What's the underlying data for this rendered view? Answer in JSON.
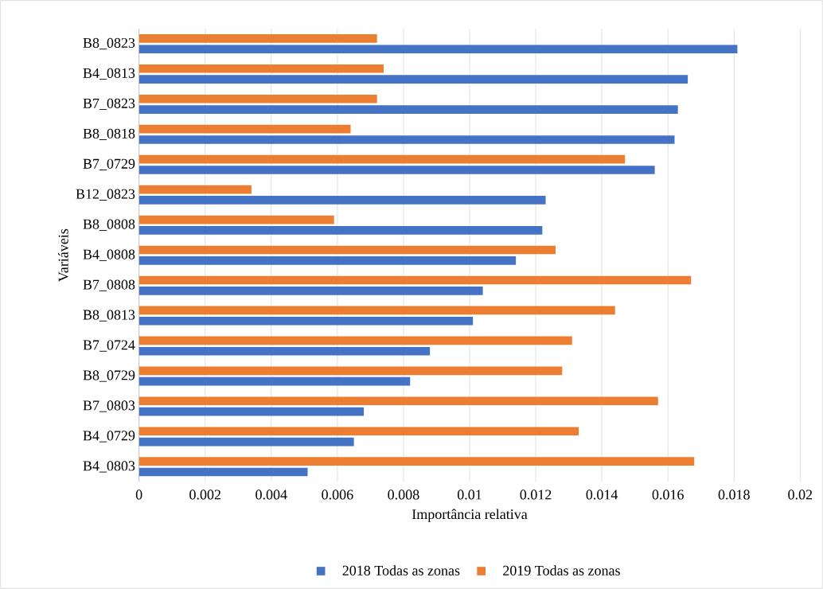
{
  "chart_data": {
    "type": "bar",
    "orientation": "horizontal",
    "categories": [
      "B8_0823",
      "B4_0813",
      "B7_0823",
      "B8_0818",
      "B7_0729",
      "B12_0823",
      "B8_0808",
      "B4_0808",
      "B7_0808",
      "B8_0813",
      "B7_0724",
      "B8_0729",
      "B7_0803",
      "B4_0729",
      "B4_0803"
    ],
    "series": [
      {
        "name": "2018 Todas as zonas",
        "color": "#4472c4",
        "values": [
          0.0181,
          0.0166,
          0.0163,
          0.0162,
          0.0156,
          0.0123,
          0.0122,
          0.0114,
          0.0104,
          0.0101,
          0.0088,
          0.0082,
          0.0068,
          0.0065,
          0.0051
        ]
      },
      {
        "name": "2019 Todas as zonas",
        "color": "#ed7d31",
        "values": [
          0.0072,
          0.0074,
          0.0072,
          0.0064,
          0.0147,
          0.0034,
          0.0059,
          0.0126,
          0.0167,
          0.0144,
          0.0131,
          0.0128,
          0.0157,
          0.0133,
          0.0168
        ]
      }
    ],
    "xlim": [
      0,
      0.02
    ],
    "xticks": [
      0,
      0.002,
      0.004,
      0.006,
      0.008,
      0.01,
      0.012,
      0.014,
      0.016,
      0.018,
      0.02
    ],
    "xlabel": "Importância relativa",
    "ylabel": "Variáveis",
    "grid": "x",
    "legend": "bottom"
  }
}
